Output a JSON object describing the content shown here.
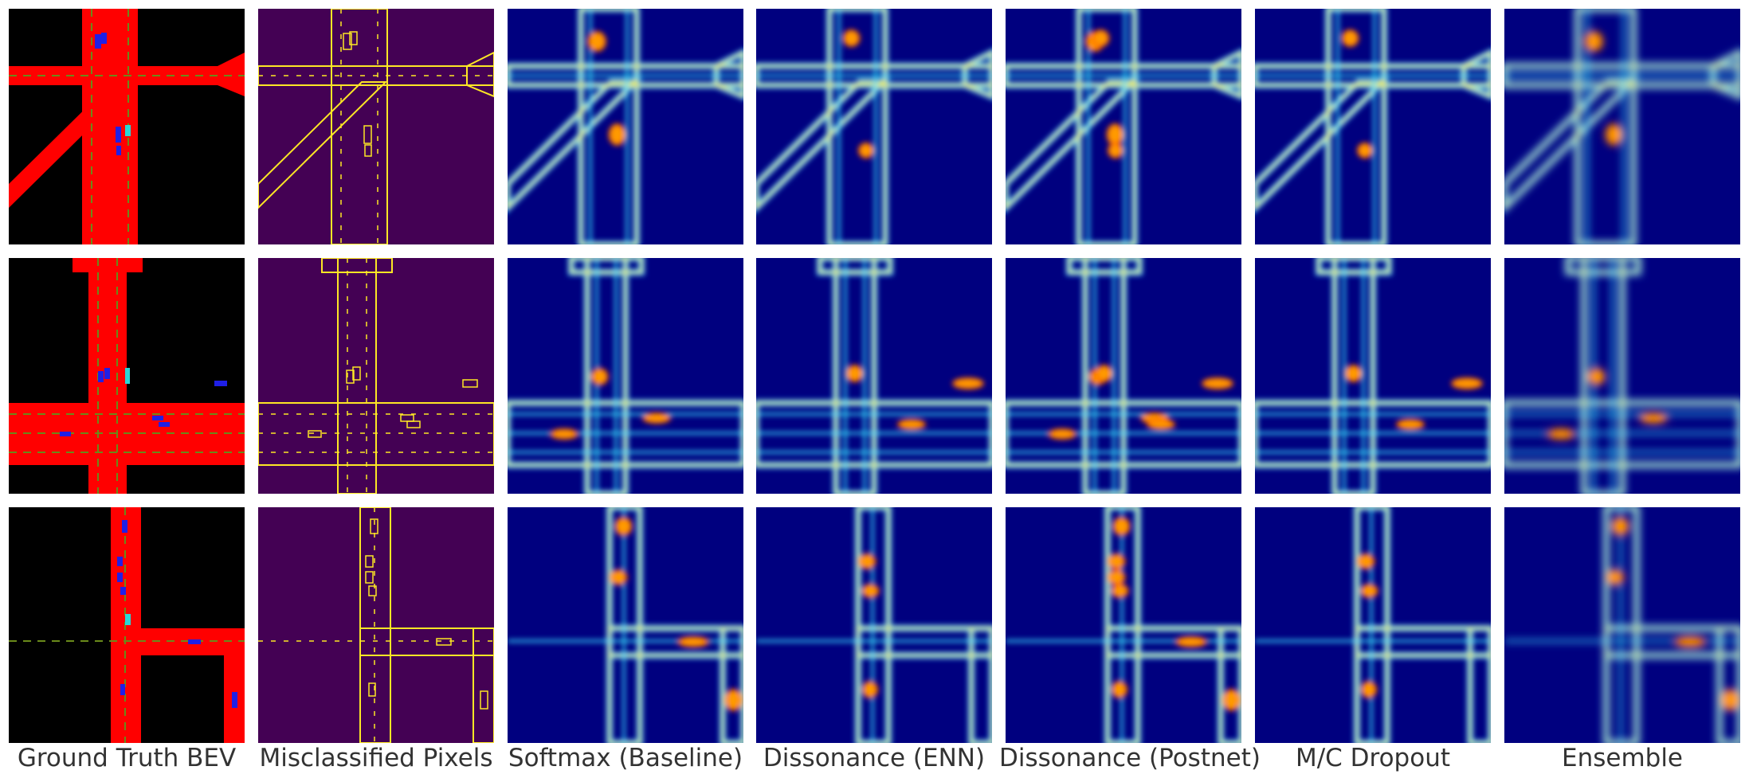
{
  "colors": {
    "bev_road": "#ff0000",
    "bev_background": "#000000",
    "bev_vehicle": "#1f1fe6",
    "bev_pedestrian": "#2ad6d6",
    "bev_lane_line": "#6a8a1a",
    "misclassified_background": "#440154",
    "misclassified_pixel": "#fde725",
    "jet_low": "#00007f",
    "jet_high": "#800000"
  },
  "columns": [
    {
      "id": "gt",
      "title": "Ground Truth BEV"
    },
    {
      "id": "mis",
      "title": "Misclassified Pixels"
    },
    {
      "id": "softmax",
      "title": "Softmax (Baseline)"
    },
    {
      "id": "enn",
      "title": "Dissonance (ENN)"
    },
    {
      "id": "postnet",
      "title": "Dissonance (Postnet)"
    },
    {
      "id": "mc",
      "title": "M/C Dropout"
    },
    {
      "id": "ens",
      "title": "Ensemble"
    }
  ],
  "rows": [
    {
      "id": "scene-1"
    },
    {
      "id": "scene-2"
    },
    {
      "id": "scene-3"
    }
  ]
}
